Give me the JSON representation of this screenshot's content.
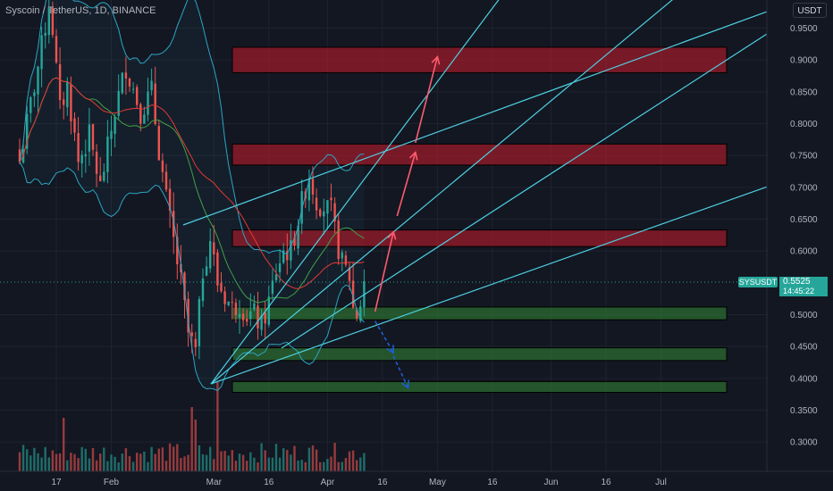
{
  "header": {
    "title": "Syscoin / TetherUS, 1D, BINANCE",
    "currency": "USDT"
  },
  "price_badge": {
    "symbol": "SYSUSDT",
    "price": "0.5525",
    "countdown": "14:45:22"
  },
  "colors": {
    "background": "#131722",
    "up": "#26a69a",
    "down": "#ef5350",
    "bb_upper_lower": "#2ca5c3",
    "ma_red": "#e53935",
    "ma_green": "#43a047",
    "trendline": "#4dd0e1",
    "resistance_zone": "#b71c2a",
    "support_zone": "#2e7d32",
    "up_arrow": "#ff5b6e",
    "down_arrow": "#1e5ecf"
  },
  "chart_data": {
    "type": "candlestick",
    "x_ticks": [
      "17",
      "Feb",
      "Mar",
      "16",
      "Apr",
      "16",
      "May",
      "16",
      "Jun",
      "16",
      "Jul"
    ],
    "y_ticks": [
      "0.9500",
      "0.9000",
      "0.8500",
      "0.8000",
      "0.7500",
      "0.7000",
      "0.6500",
      "0.6000",
      "0.5000",
      "0.4500",
      "0.4000",
      "0.3500",
      "0.3000"
    ],
    "y_range": [
      0.265,
      0.985
    ],
    "last_price": 0.5525,
    "resistance_zones": [
      [
        0.88,
        0.92
      ],
      [
        0.735,
        0.768
      ],
      [
        0.607,
        0.633
      ]
    ],
    "support_zones": [
      [
        0.492,
        0.512
      ],
      [
        0.428,
        0.448
      ],
      [
        0.378,
        0.395
      ]
    ],
    "projection_arrows_up": [
      {
        "from": [
          "2022-04-14",
          0.505
        ],
        "to": [
          "2022-04-19",
          0.63
        ]
      },
      {
        "from": [
          "2022-04-20",
          0.655
        ],
        "to": [
          "2022-04-25",
          0.755
        ]
      },
      {
        "from": [
          "2022-04-25",
          0.77
        ],
        "to": [
          "2022-05-01",
          0.905
        ]
      }
    ],
    "projection_arrows_down": [
      {
        "from": [
          "2022-04-14",
          0.49
        ],
        "to": [
          "2022-04-19",
          0.44
        ]
      },
      {
        "from": [
          "2022-04-19",
          0.435
        ],
        "to": [
          "2022-04-23",
          0.385
        ]
      }
    ]
  }
}
